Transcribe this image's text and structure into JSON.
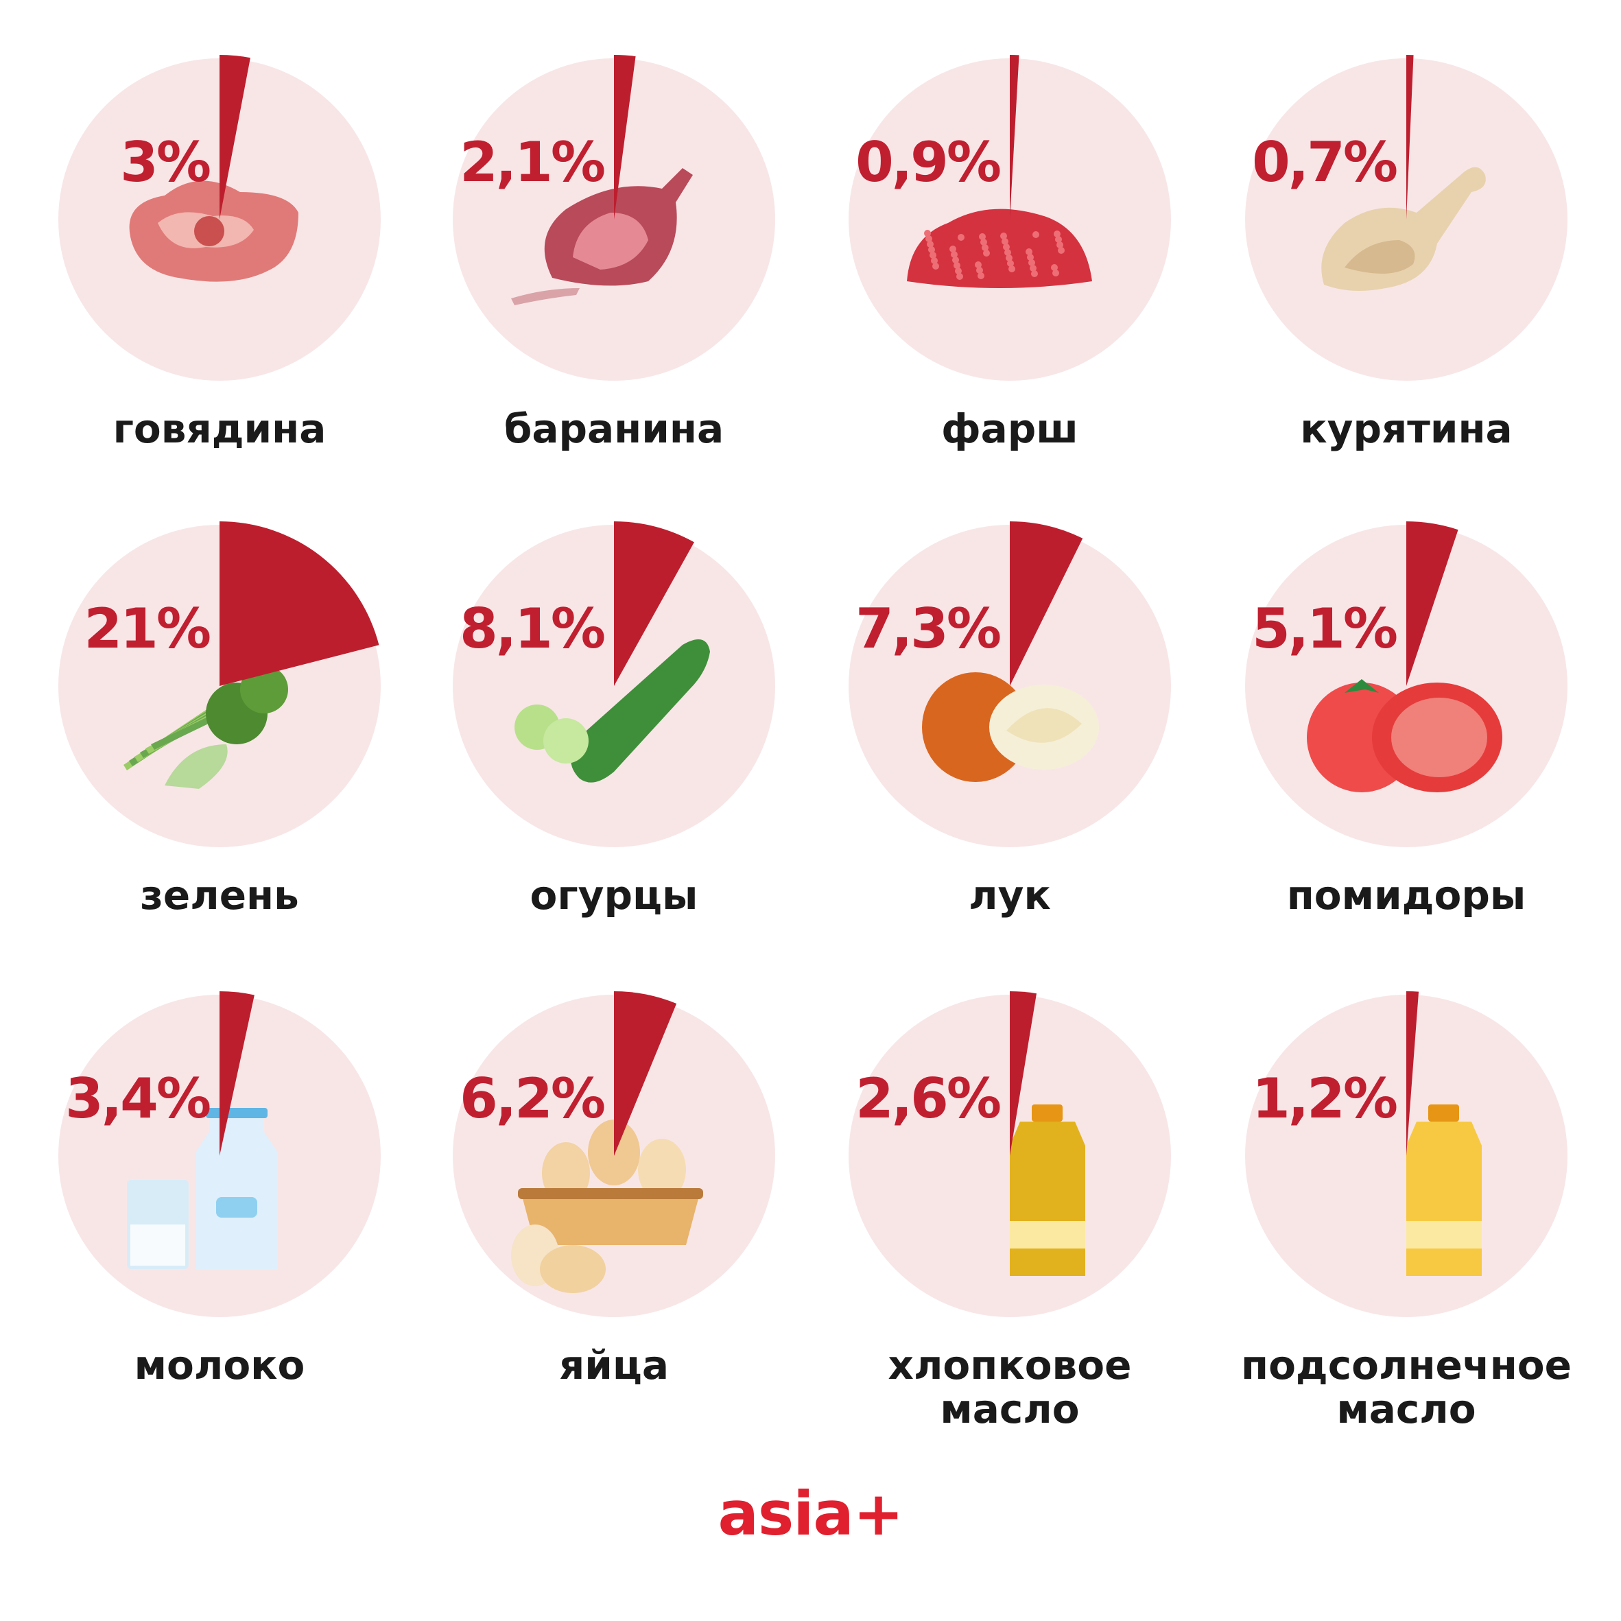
{
  "chart_data": {
    "type": "pie",
    "values_unit": "%",
    "items": [
      {
        "label_lines": [
          "говядина"
        ],
        "value_text": "3%",
        "value": 3,
        "icon": "beef-steak-icon"
      },
      {
        "label_lines": [
          "баранина"
        ],
        "value_text": "2,1%",
        "value": 2.1,
        "icon": "lamb-rack-icon"
      },
      {
        "label_lines": [
          "фарш"
        ],
        "value_text": "0,9%",
        "value": 0.9,
        "icon": "minced-meat-icon"
      },
      {
        "label_lines": [
          "курятина"
        ],
        "value_text": "0,7%",
        "value": 0.7,
        "icon": "chicken-leg-icon"
      },
      {
        "label_lines": [
          "зелень"
        ],
        "value_text": "21%",
        "value": 21,
        "icon": "greens-icon"
      },
      {
        "label_lines": [
          "огурцы"
        ],
        "value_text": "8,1%",
        "value": 8.1,
        "icon": "cucumber-icon"
      },
      {
        "label_lines": [
          "лук"
        ],
        "value_text": "7,3%",
        "value": 7.3,
        "icon": "onion-icon"
      },
      {
        "label_lines": [
          "помидоры"
        ],
        "value_text": "5,1%",
        "value": 5.1,
        "icon": "tomato-icon"
      },
      {
        "label_lines": [
          "молоко"
        ],
        "value_text": "3,4%",
        "value": 3.4,
        "icon": "milk-icon"
      },
      {
        "label_lines": [
          "яйца"
        ],
        "value_text": "6,2%",
        "value": 6.2,
        "icon": "eggs-icon"
      },
      {
        "label_lines": [
          "хлопковое",
          "масло"
        ],
        "value_text": "2,6%",
        "value": 2.6,
        "icon": "cottonseed-oil-bottle-icon"
      },
      {
        "label_lines": [
          "подсолнечное",
          "масло"
        ],
        "value_text": "1,2%",
        "value": 1.2,
        "icon": "sunflower-oil-bottle-icon"
      }
    ]
  },
  "colors": {
    "slice": "#bd1e2e",
    "circle": "#f8e6e7",
    "percent_text": "#c01f30",
    "label_text": "#1a1a1a",
    "logo": "#e0202e"
  },
  "logo": "asia+"
}
